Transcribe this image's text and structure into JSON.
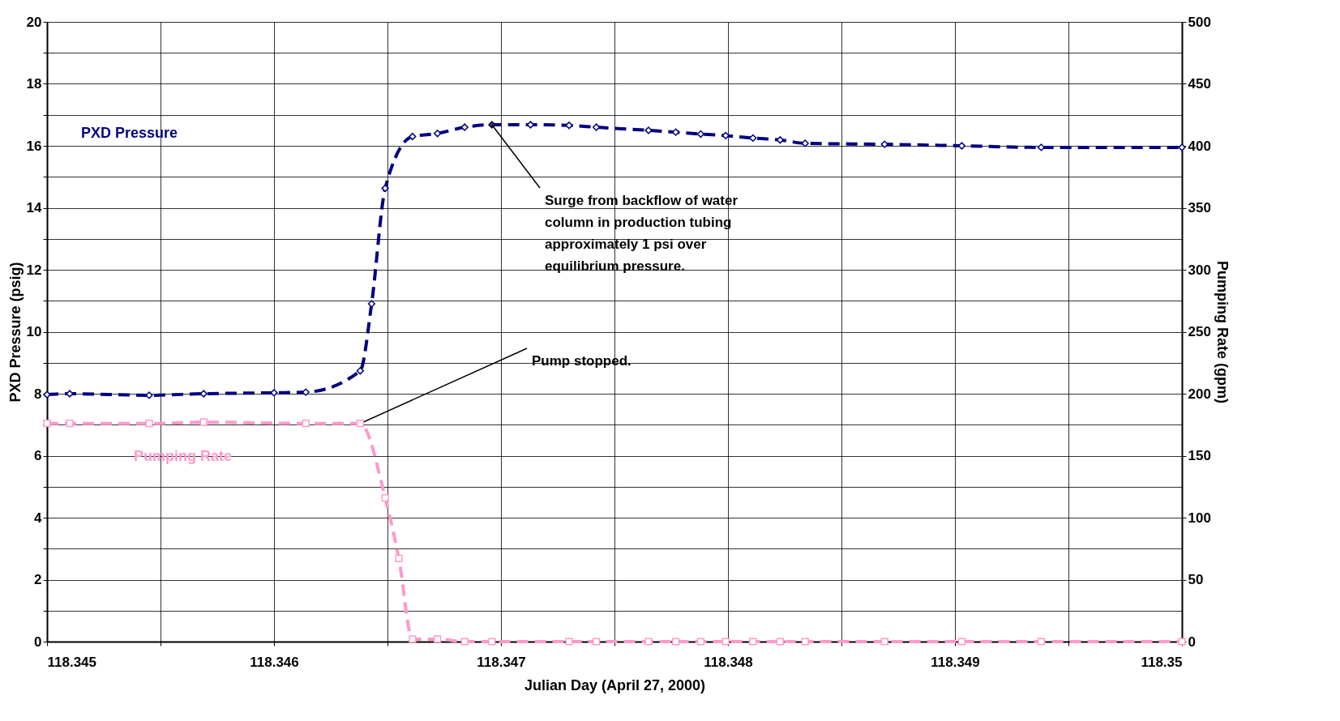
{
  "chart_data": {
    "type": "line",
    "xlabel": "Julian Day (April 27, 2000)",
    "ylabel": "PXD Pressure (psig)",
    "y2label": "Pumping Rate (gpm)",
    "xlim": [
      118.345,
      118.35
    ],
    "xticks": [
      118.345,
      {
        "value": 118.3455,
        "label": null
      },
      118.346,
      {
        "value": 118.3465,
        "label": null
      },
      118.347,
      {
        "value": 118.3475,
        "label": null
      },
      118.348,
      {
        "value": 118.3485,
        "label": null
      },
      118.349,
      {
        "value": 118.3495,
        "label": null
      },
      118.35
    ],
    "ylim": [
      0,
      20
    ],
    "yticks": [
      0,
      {
        "value": 1,
        "label": null
      },
      2,
      {
        "value": 3,
        "label": null
      },
      4,
      {
        "value": 5,
        "label": null
      },
      6,
      {
        "value": 7,
        "label": null
      },
      8,
      {
        "value": 9,
        "label": null
      },
      10,
      {
        "value": 11,
        "label": null
      },
      12,
      {
        "value": 13,
        "label": null
      },
      14,
      {
        "value": 15,
        "label": null
      },
      16,
      {
        "value": 17,
        "label": null
      },
      18,
      {
        "value": 19,
        "label": null
      },
      20
    ],
    "y2lim": [
      0,
      500
    ],
    "y2ticks": [
      0,
      50,
      100,
      150,
      200,
      250,
      300,
      350,
      400,
      450,
      500
    ],
    "grid": true,
    "legend": false,
    "line_style": "dashed",
    "series": [
      {
        "name": "PXD Pressure",
        "color": "#000080",
        "marker": "diamond",
        "x": [
          118.345,
          118.3451,
          118.34545,
          118.34569,
          118.346,
          118.34614,
          118.34638,
          118.34643,
          118.34649,
          118.34661,
          118.34672,
          118.34684,
          118.34696,
          118.34713,
          118.3473,
          118.34742,
          118.34765,
          118.34777,
          118.34788,
          118.34799,
          118.34811,
          118.34823,
          118.34834,
          118.34869,
          118.34903,
          118.34938,
          118.35
        ],
        "values": [
          7.97,
          8.0,
          7.95,
          8.0,
          8.03,
          8.05,
          8.74,
          10.9,
          14.63,
          16.3,
          16.4,
          16.6,
          16.68,
          16.68,
          16.66,
          16.6,
          16.5,
          16.44,
          16.38,
          16.33,
          16.25,
          16.19,
          16.08,
          16.05,
          16.0,
          15.95,
          15.95
        ]
      },
      {
        "name": "Pumping Rate",
        "color": "#ff99cc",
        "marker": "square",
        "axis": "y2",
        "x": [
          118.345,
          118.3451,
          118.34545,
          118.34569,
          118.34614,
          118.34638,
          118.34649,
          118.34655,
          118.34661,
          118.34672,
          118.34684,
          118.34696,
          118.3473,
          118.34742,
          118.34765,
          118.34777,
          118.34788,
          118.34799,
          118.34811,
          118.34823,
          118.34834,
          118.34869,
          118.34903,
          118.34938,
          118.35
        ],
        "values": [
          176,
          176,
          176,
          177,
          176,
          176,
          116,
          67,
          2,
          2,
          0,
          0,
          0,
          0,
          0,
          0,
          0,
          0,
          0,
          0,
          0,
          0,
          0,
          0,
          0
        ]
      }
    ],
    "annotations": [
      {
        "text": "Surge from backflow of water column in production tubing approximately 1 psi over equilibrium pressure.",
        "x": 118.34696,
        "y": 16.68
      },
      {
        "text": "Pump stopped.",
        "x": 118.34638,
        "y": 7.04
      }
    ]
  }
}
